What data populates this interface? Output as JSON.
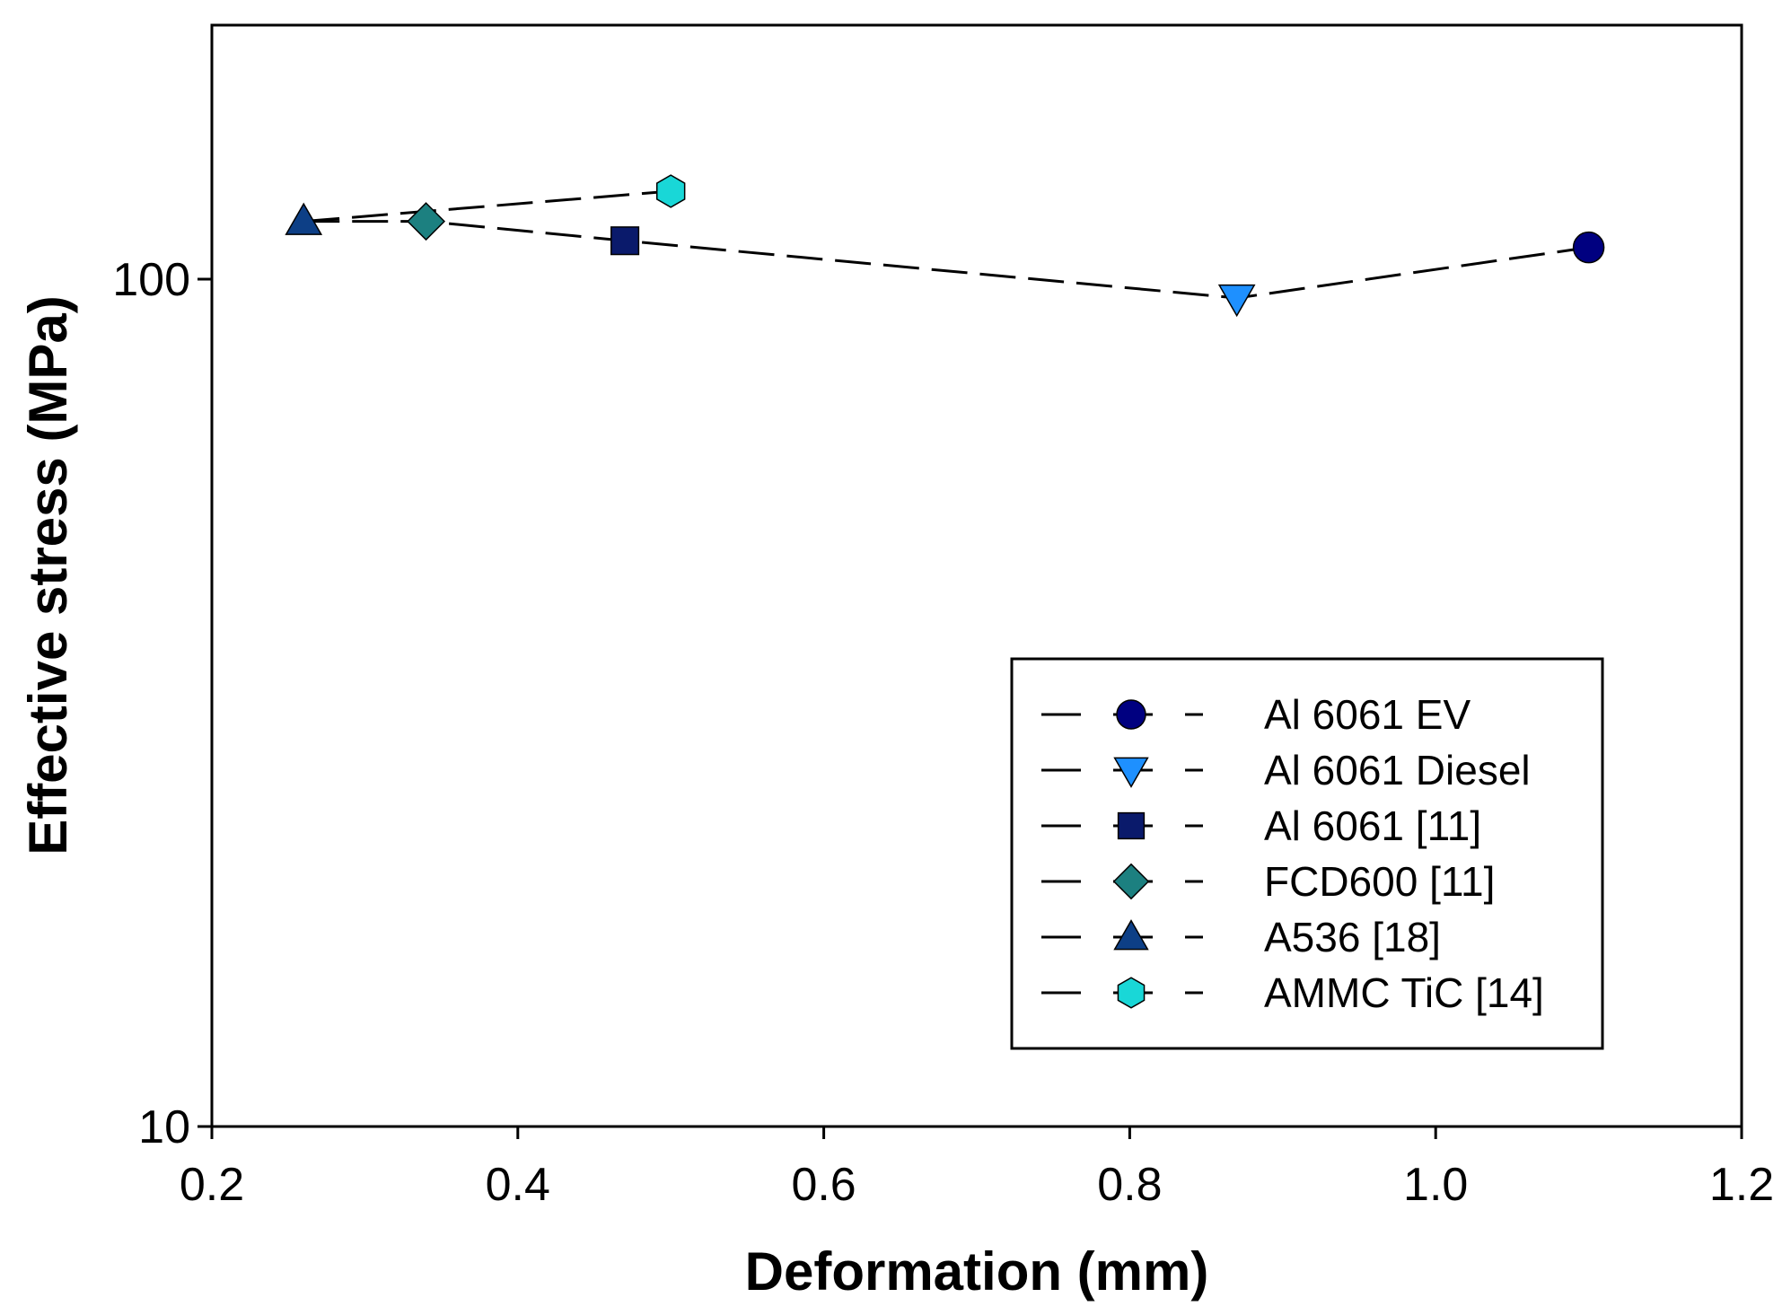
{
  "chart_data": {
    "type": "scatter",
    "title": "",
    "xlabel": "Deformation (mm)",
    "ylabel": "Effective stress (MPa)",
    "xlim": [
      0.2,
      1.2
    ],
    "ylim": [
      10,
      200
    ],
    "yscale": "log",
    "x_ticks": [
      0.2,
      0.4,
      0.6,
      0.8,
      1.0,
      1.2
    ],
    "x_tick_labels": [
      "0.2",
      "0.4",
      "0.6",
      "0.8",
      "1.0",
      "1.2"
    ],
    "y_ticks": [
      10,
      100
    ],
    "y_tick_labels": [
      "10",
      "100"
    ],
    "legend_position": "lower-right",
    "connecting_lines": [
      [
        "A536 [18]",
        "AMMC TiC  [14]"
      ],
      [
        "A536 [18]",
        "FCD600 [11]",
        "Al 6061 [11]",
        "Al 6061 Diesel",
        "Al 6061 EV"
      ]
    ],
    "series": [
      {
        "name": "Al 6061 EV",
        "marker": "circle",
        "color": "#000080",
        "x": 1.1,
        "y": 109
      },
      {
        "name": "Al 6061 Diesel",
        "marker": "triangle-down",
        "color": "#1E90FF",
        "x": 0.87,
        "y": 95
      },
      {
        "name": "Al 6061 [11]",
        "marker": "square",
        "color": "#0A1A6B",
        "x": 0.47,
        "y": 111
      },
      {
        "name": "FCD600 [11]",
        "marker": "diamond",
        "color": "#1C8080",
        "x": 0.34,
        "y": 117
      },
      {
        "name": "A536 [18]",
        "marker": "triangle-up",
        "color": "#0D3F86",
        "x": 0.26,
        "y": 117
      },
      {
        "name": "AMMC TiC  [14]",
        "marker": "hexagon",
        "color": "#19D7D7",
        "x": 0.5,
        "y": 127
      }
    ]
  }
}
